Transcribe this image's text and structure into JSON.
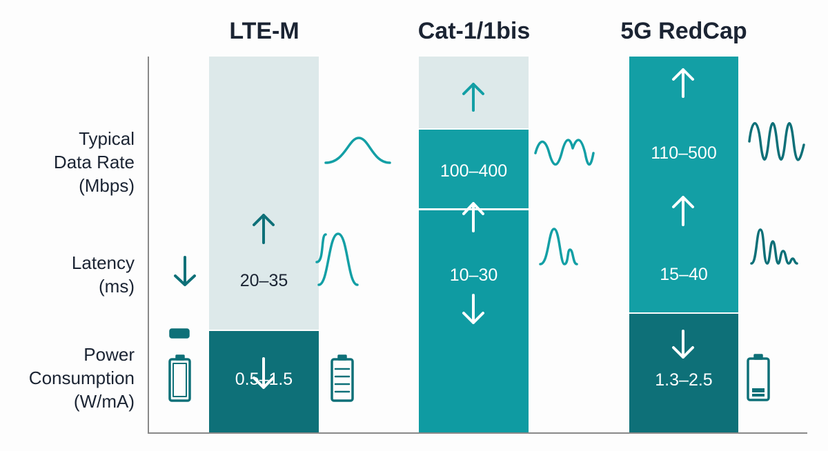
{
  "columns": [
    {
      "title": "LTE-M",
      "data_rate": "",
      "latency": "20–35",
      "power": "0.5–1.5"
    },
    {
      "title": "Cat-1/1bis",
      "data_rate": "100–400",
      "latency": "10–30",
      "power": ""
    },
    {
      "title": "5G RedCap",
      "data_rate": "110–500",
      "latency": "15–40",
      "power": "1.3–2.5"
    }
  ],
  "rows": [
    {
      "label_lines": [
        "Typical",
        "Data Rate",
        "(Mbps)"
      ]
    },
    {
      "label_lines": [
        "Latency",
        "(ms)"
      ]
    },
    {
      "label_lines": [
        "Power",
        "Consumption",
        "(W/mA)"
      ]
    }
  ],
  "colors": {
    "light": "#dde9ea",
    "mid": "#139fa5",
    "dark": "#0e7078",
    "axis": "#888888"
  }
}
